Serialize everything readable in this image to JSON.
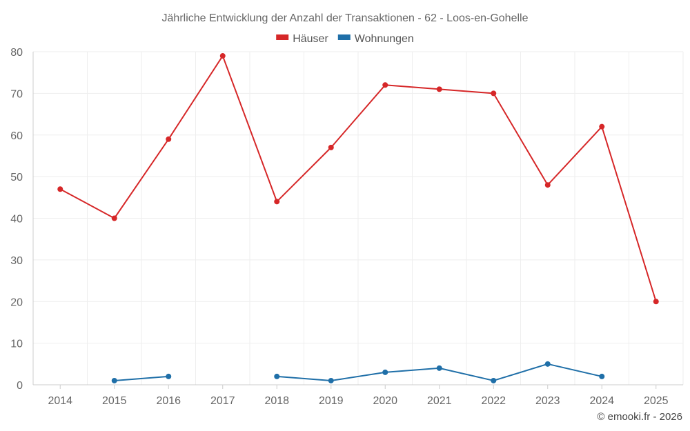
{
  "chart_data": {
    "type": "line",
    "title": "Jährliche Entwicklung der Anzahl der Transaktionen - 62 - Loos-en-Gohelle",
    "xlabel": "",
    "ylabel": "",
    "categories": [
      "2014",
      "2015",
      "2016",
      "2017",
      "2018",
      "2019",
      "2020",
      "2021",
      "2022",
      "2023",
      "2024",
      "2025"
    ],
    "ylim": [
      0,
      80
    ],
    "yticks": [
      0,
      10,
      20,
      30,
      40,
      50,
      60,
      70,
      80
    ],
    "grid": true,
    "legend_position": "top-center",
    "series": [
      {
        "name": "Häuser",
        "color": "#d62728",
        "values": [
          47,
          40,
          59,
          79,
          44,
          57,
          72,
          71,
          70,
          48,
          62,
          20
        ]
      },
      {
        "name": "Wohnungen",
        "color": "#1f6fa8",
        "values": [
          null,
          1,
          2,
          null,
          2,
          1,
          3,
          4,
          1,
          5,
          2,
          null
        ]
      }
    ]
  },
  "credit": "© emooki.fr - 2026"
}
